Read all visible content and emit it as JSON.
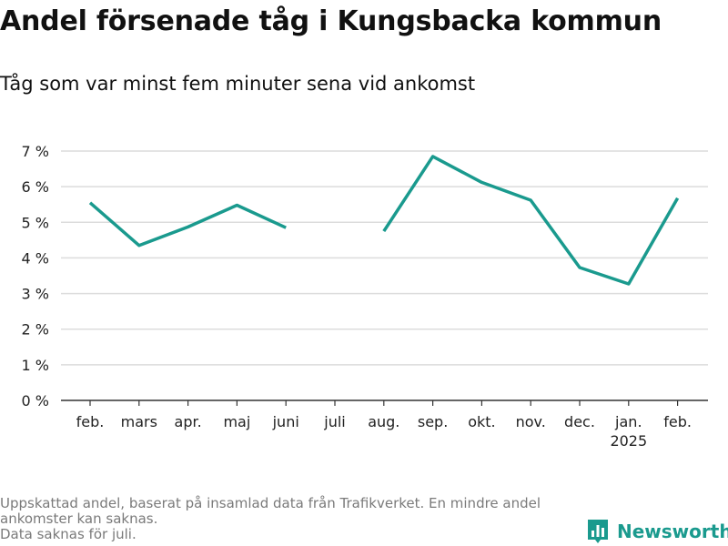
{
  "header": {
    "title": "Andel försenade tåg i Kungsbacka kommun",
    "subtitle": "Tåg som var minst fem minuter sena vid ankomst"
  },
  "footnote": {
    "line1": "Uppskattad andel, baserat på insamlad data från Trafikverket. En mindre andel",
    "line2": "ankomster kan saknas.",
    "line3": "Data saknas för juli."
  },
  "brand": {
    "name": "Newsworthy",
    "color": "#1a9a8e",
    "icon": "bar-chart-logo-icon"
  },
  "chart_data": {
    "type": "line",
    "categories": [
      "feb.",
      "mars",
      "apr.",
      "maj",
      "juni",
      "juli",
      "aug.",
      "sep.",
      "okt.",
      "nov.",
      "dec.",
      "jan.",
      "feb."
    ],
    "category_sublabels": [
      "",
      "",
      "",
      "",
      "",
      "",
      "",
      "",
      "",
      "",
      "",
      "2025",
      ""
    ],
    "series": [
      {
        "values": [
          5.55,
          4.35,
          4.87,
          5.48,
          4.85,
          null,
          4.75,
          6.85,
          6.12,
          5.62,
          3.73,
          3.27,
          5.68
        ],
        "color": "#1a9a8e"
      }
    ],
    "yticks": [
      0,
      1,
      2,
      3,
      4,
      5,
      6,
      7
    ],
    "ytick_suffix": " %",
    "ylim": [
      0,
      7.2
    ],
    "grid": true,
    "legend": "none"
  }
}
